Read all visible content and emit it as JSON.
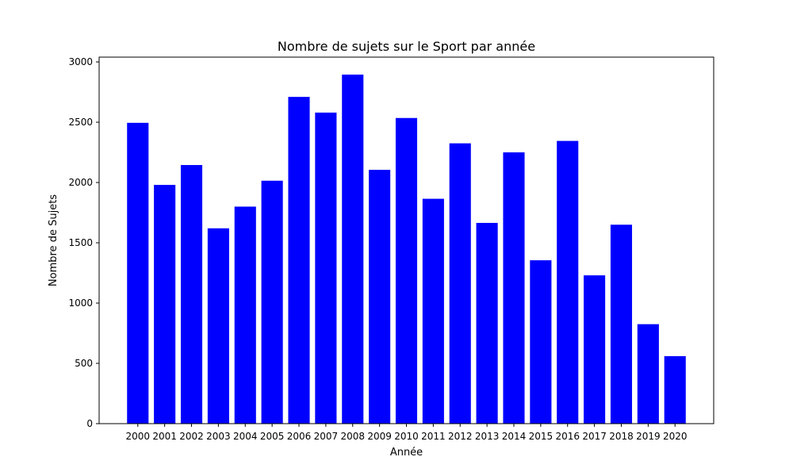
{
  "chart_data": {
    "type": "bar",
    "title": "Nombre de sujets sur le Sport par année",
    "xlabel": "Année",
    "ylabel": "Nombre de Sujets",
    "categories": [
      "2000",
      "2001",
      "2002",
      "2003",
      "2004",
      "2005",
      "2006",
      "2007",
      "2008",
      "2009",
      "2010",
      "2011",
      "2012",
      "2013",
      "2014",
      "2015",
      "2016",
      "2017",
      "2018",
      "2019",
      "2020"
    ],
    "values": [
      2495,
      1980,
      2145,
      1620,
      1800,
      2015,
      2710,
      2580,
      2895,
      2105,
      2535,
      1865,
      2325,
      1665,
      2250,
      1355,
      2345,
      1230,
      1650,
      825,
      560
    ],
    "yticks": [
      0,
      500,
      1000,
      1500,
      2000,
      2500,
      3000
    ],
    "ylim": [
      0,
      3040
    ],
    "bar_color": "#0000ff",
    "grid": false,
    "legend": "none"
  }
}
